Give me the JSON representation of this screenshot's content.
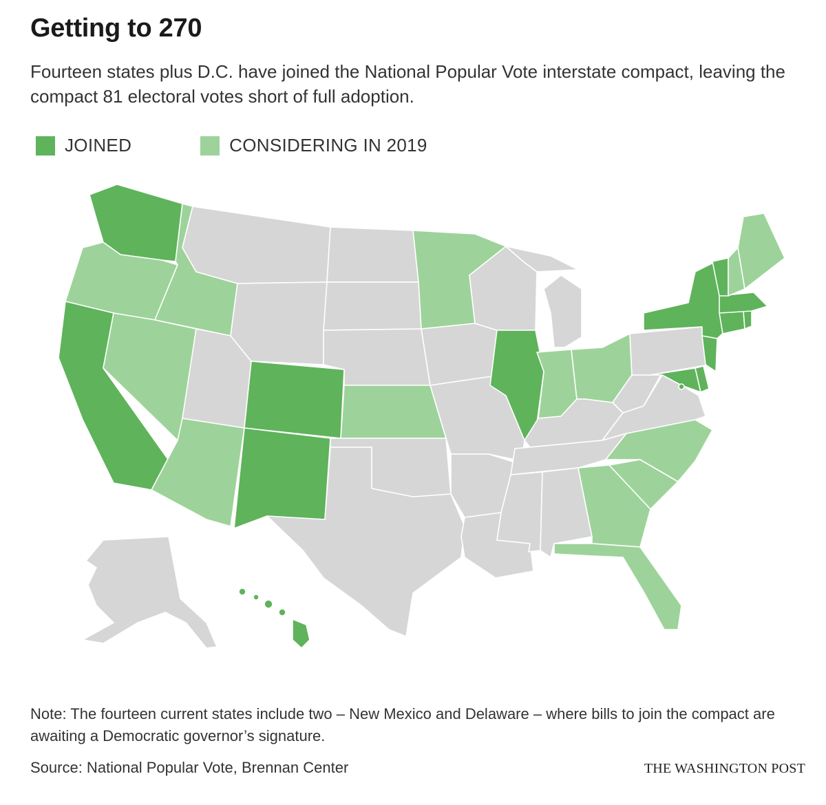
{
  "title": "Getting to 270",
  "subtitle": "Fourteen states plus D.C. have joined the National Popular Vote interstate compact, leaving the compact 81 electoral votes short of full adoption.",
  "legend": {
    "joined_label": "JOINED",
    "considering_label": "CONSIDERING IN 2019"
  },
  "colors": {
    "joined": "#5fb35b",
    "considering": "#9dd39a",
    "other": "#d6d6d6"
  },
  "map": {
    "joined": [
      "WA",
      "CA",
      "CO",
      "NM",
      "IL",
      "NY",
      "VT",
      "MA",
      "RI",
      "CT",
      "NJ",
      "DE",
      "MD",
      "HI",
      "DC"
    ],
    "considering": [
      "OR",
      "ID",
      "NV",
      "AZ",
      "MN",
      "KS",
      "IN",
      "OH",
      "NC",
      "SC",
      "GA",
      "FL",
      "ME",
      "NH"
    ]
  },
  "note": "Note: The fourteen current states include two – New Mexico and Delaware – where bills to join the compact are awaiting a Democratic governor’s signature.",
  "source": "Source: National Popular Vote, Brennan Center",
  "credit": "THE WASHINGTON POST"
}
